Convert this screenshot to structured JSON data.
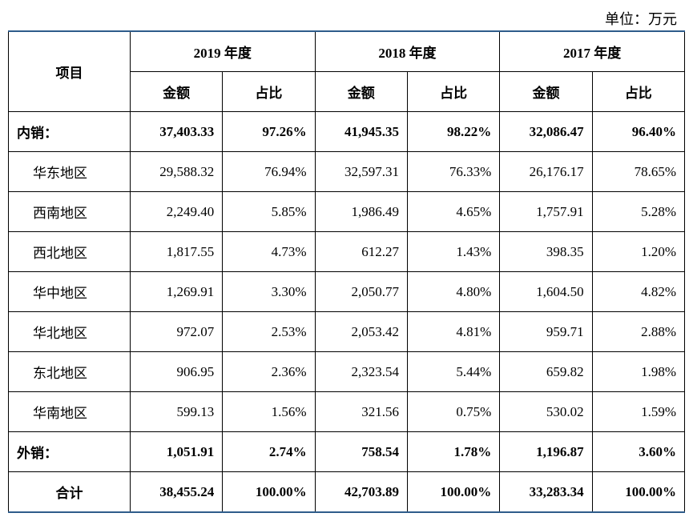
{
  "unit_label": "单位：万元",
  "header": {
    "project": "项目",
    "year2019": "2019 年度",
    "year2018": "2018 年度",
    "year2017": "2017 年度",
    "amount": "金额",
    "ratio": "占比"
  },
  "rows": [
    {
      "label": "内销：",
      "type": "section",
      "a2019": "37,403.33",
      "r2019": "97.26%",
      "a2018": "41,945.35",
      "r2018": "98.22%",
      "a2017": "32,086.47",
      "r2017": "96.40%"
    },
    {
      "label": "华东地区",
      "type": "sub",
      "a2019": "29,588.32",
      "r2019": "76.94%",
      "a2018": "32,597.31",
      "r2018": "76.33%",
      "a2017": "26,176.17",
      "r2017": "78.65%"
    },
    {
      "label": "西南地区",
      "type": "sub",
      "a2019": "2,249.40",
      "r2019": "5.85%",
      "a2018": "1,986.49",
      "r2018": "4.65%",
      "a2017": "1,757.91",
      "r2017": "5.28%"
    },
    {
      "label": "西北地区",
      "type": "sub",
      "a2019": "1,817.55",
      "r2019": "4.73%",
      "a2018": "612.27",
      "r2018": "1.43%",
      "a2017": "398.35",
      "r2017": "1.20%"
    },
    {
      "label": "华中地区",
      "type": "sub",
      "a2019": "1,269.91",
      "r2019": "3.30%",
      "a2018": "2,050.77",
      "r2018": "4.80%",
      "a2017": "1,604.50",
      "r2017": "4.82%"
    },
    {
      "label": "华北地区",
      "type": "sub",
      "a2019": "972.07",
      "r2019": "2.53%",
      "a2018": "2,053.42",
      "r2018": "4.81%",
      "a2017": "959.71",
      "r2017": "2.88%"
    },
    {
      "label": "东北地区",
      "type": "sub",
      "a2019": "906.95",
      "r2019": "2.36%",
      "a2018": "2,323.54",
      "r2018": "5.44%",
      "a2017": "659.82",
      "r2017": "1.98%"
    },
    {
      "label": "华南地区",
      "type": "sub",
      "a2019": "599.13",
      "r2019": "1.56%",
      "a2018": "321.56",
      "r2018": "0.75%",
      "a2017": "530.02",
      "r2017": "1.59%"
    },
    {
      "label": "外销：",
      "type": "section",
      "a2019": "1,051.91",
      "r2019": "2.74%",
      "a2018": "758.54",
      "r2018": "1.78%",
      "a2017": "1,196.87",
      "r2017": "3.60%"
    },
    {
      "label": "合计",
      "type": "total",
      "a2019": "38,455.24",
      "r2019": "100.00%",
      "a2018": "42,703.89",
      "r2018": "100.00%",
      "a2017": "33,283.34",
      "r2017": "100.00%"
    }
  ],
  "styling": {
    "accent_line_color": "#2e5c8a",
    "border_color": "#000000",
    "text_color": "#000000",
    "background_color": "#ffffff",
    "unit_fontsize": 18,
    "cell_fontsize": 17,
    "font_family": "SimSun"
  }
}
